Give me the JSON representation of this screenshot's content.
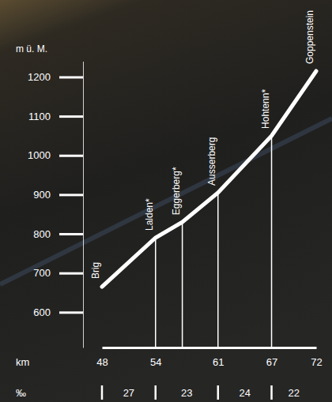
{
  "chart_data": {
    "type": "line",
    "y_label": "m ü. M.",
    "x_label": "km",
    "x": [
      48,
      54,
      57,
      61,
      67,
      72
    ],
    "values": [
      665,
      790,
      830,
      905,
      1050,
      1215
    ],
    "labels": [
      "Brig",
      "Lalden*",
      "Eggerberg*",
      "Ausserberg",
      "Hohtenn*",
      "Goppenstein"
    ],
    "color": "#ffffff",
    "xlim": [
      48,
      72
    ],
    "xticks": [
      48,
      54,
      61,
      67,
      72
    ],
    "ylim": [
      510,
      1240
    ],
    "yticks": [
      600,
      700,
      800,
      900,
      1000,
      1100,
      1200
    ],
    "gradient_label": "‰",
    "gradients": {
      "values": [
        27,
        23,
        24,
        22
      ],
      "from": [
        48,
        54,
        61,
        67
      ],
      "to": [
        54,
        61,
        67,
        72
      ]
    },
    "grid": false
  }
}
